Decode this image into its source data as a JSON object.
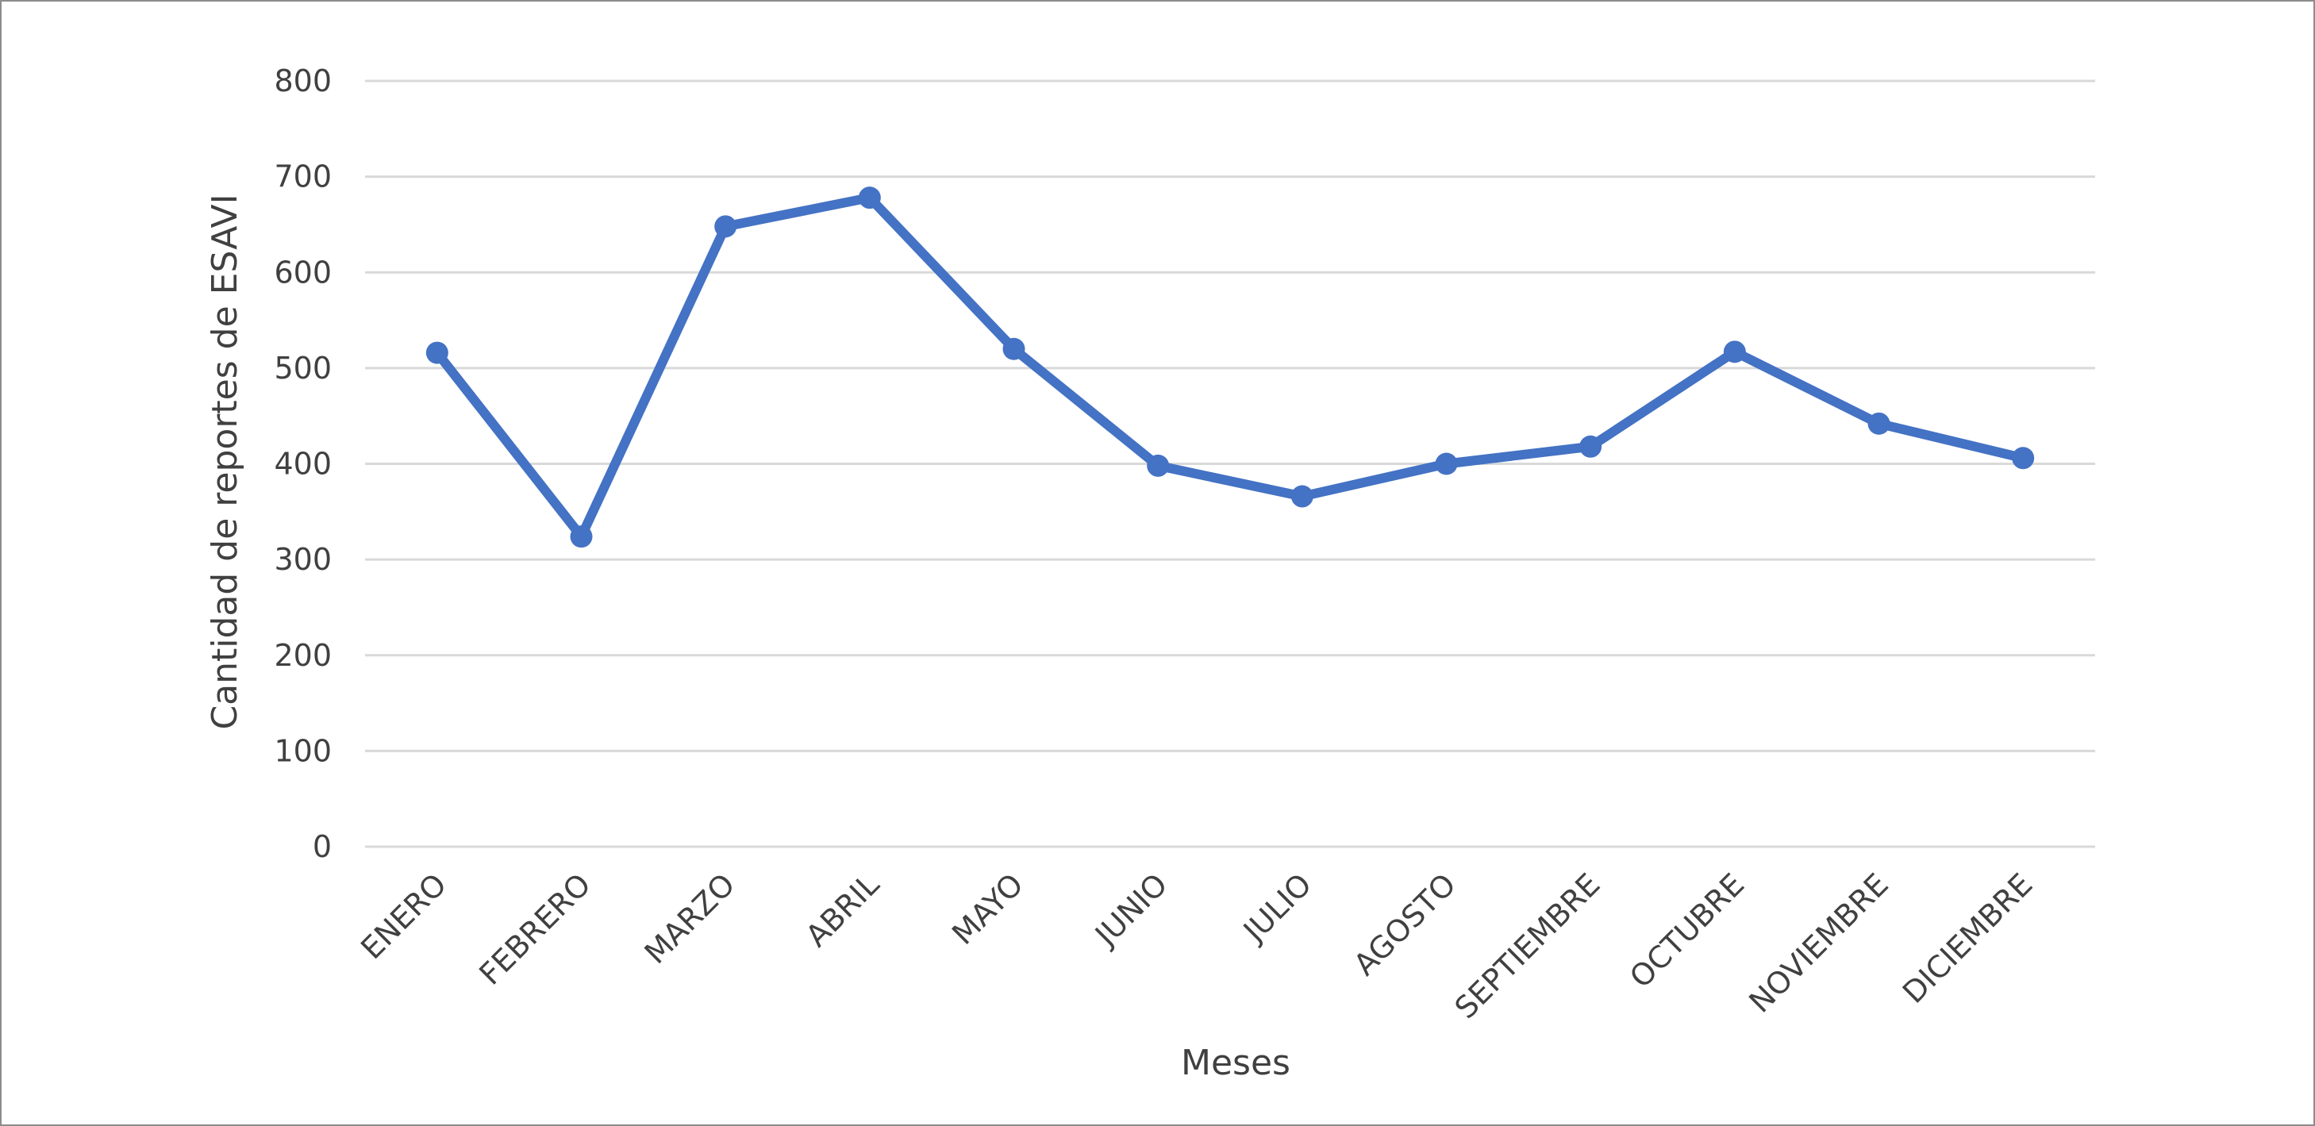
{
  "chart_data": {
    "type": "line",
    "title": "",
    "xlabel": "Meses",
    "ylabel": "Cantidad de reportes de ESAVI",
    "categories": [
      "ENERO",
      "FEBRERO",
      "MARZO",
      "ABRIL",
      "MAYO",
      "JUNIO",
      "JULIO",
      "AGOSTO",
      "SEPTIEMBRE",
      "OCTUBRE",
      "NOVIEMBRE",
      "DICIEMBRE"
    ],
    "series": [
      {
        "values": [
          516,
          324,
          648,
          678,
          520,
          398,
          366,
          400,
          418,
          517,
          442,
          406
        ]
      }
    ],
    "ylim": [
      0,
      800
    ],
    "yticks": [
      0,
      100,
      200,
      300,
      400,
      500,
      600,
      700,
      800
    ],
    "grid": true,
    "legend": "none",
    "colors": {
      "line": "#4472C4",
      "grid": "#d9d9d9",
      "text": "#404040"
    }
  }
}
